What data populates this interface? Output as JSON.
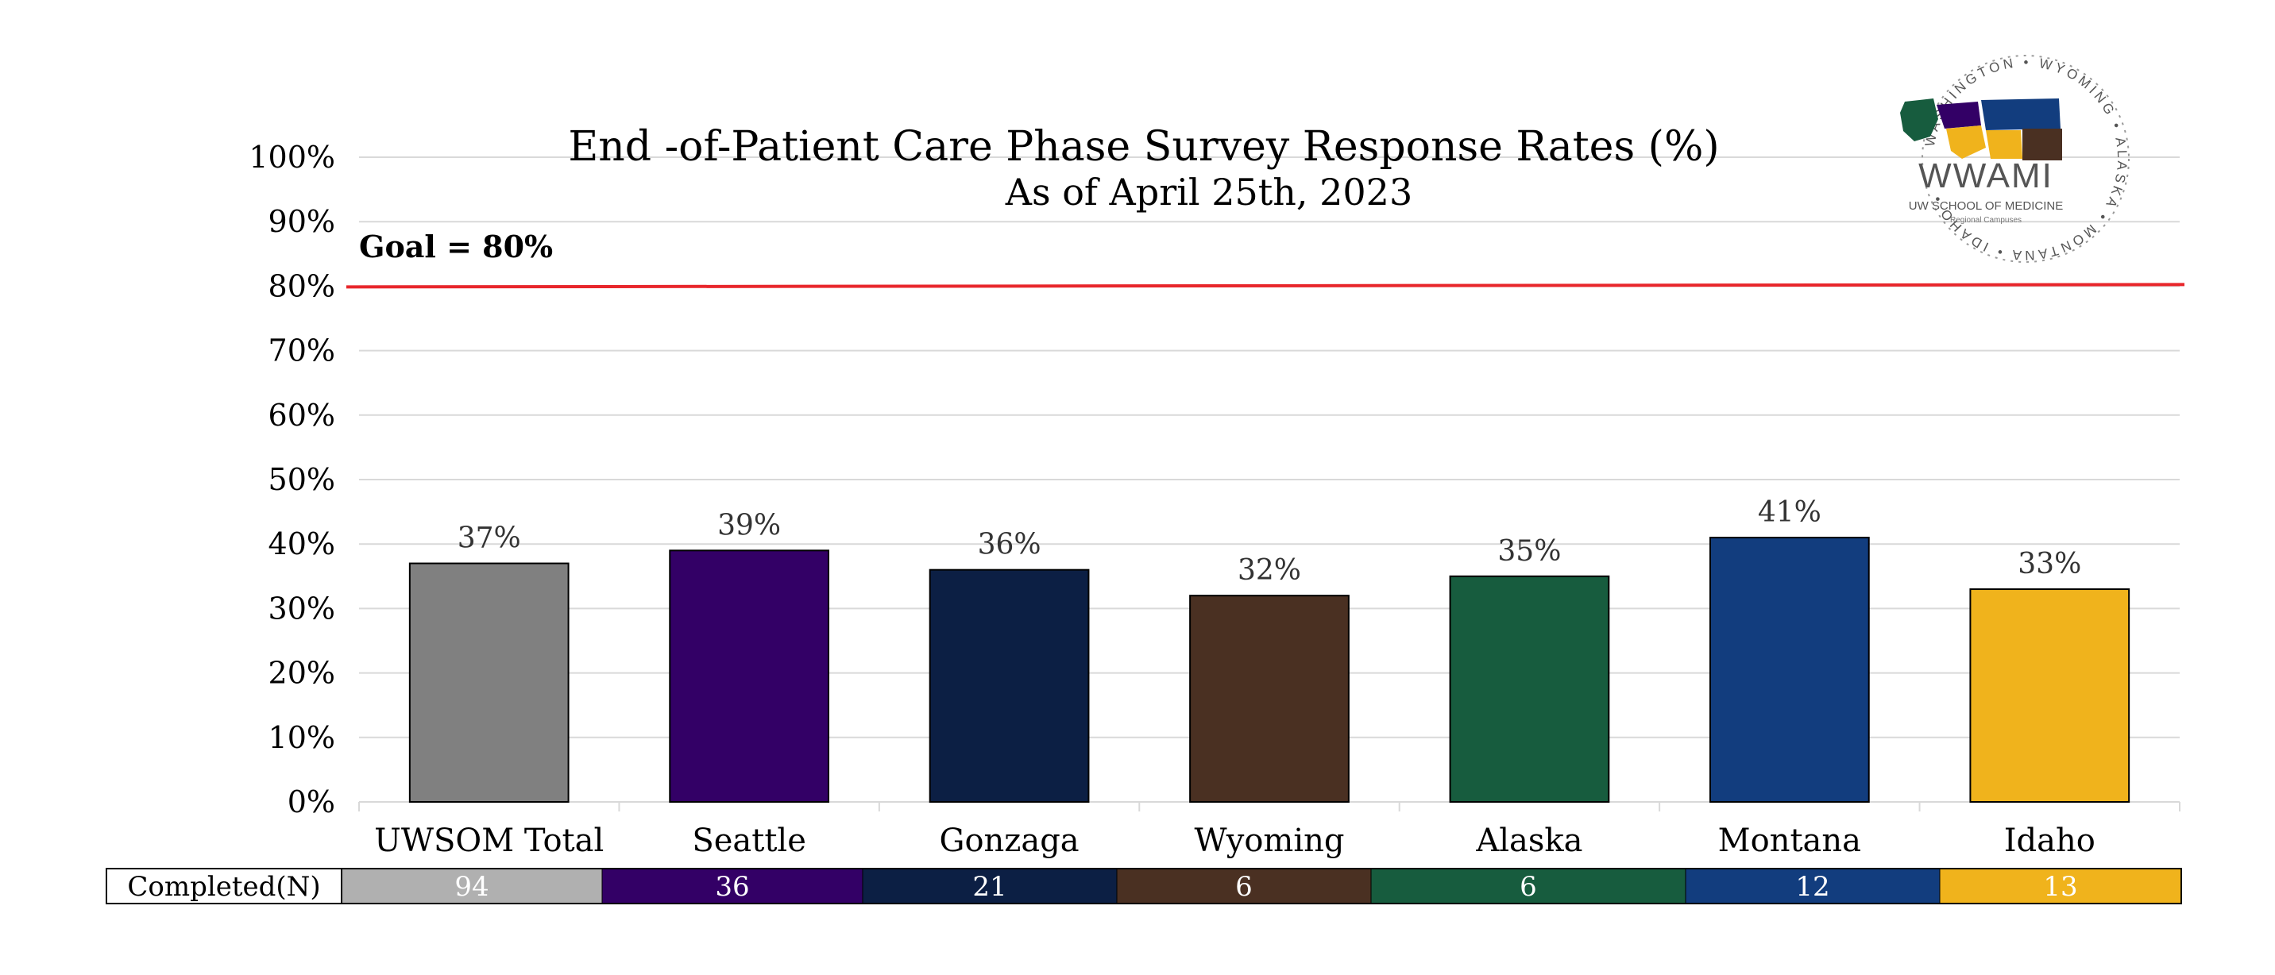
{
  "chart_data": {
    "type": "bar",
    "title": "End -of-Patient Care Phase Survey Response Rates (%)",
    "subtitle": "As of April 25th, 2023",
    "categories": [
      "UWSOM Total",
      "Seattle",
      "Gonzaga",
      "Wyoming",
      "Alaska",
      "Montana",
      "Idaho"
    ],
    "values": [
      37,
      39,
      36,
      32,
      35,
      41,
      33
    ],
    "value_labels": [
      "37%",
      "39%",
      "36%",
      "32%",
      "35%",
      "41%",
      "33%"
    ],
    "colors": [
      "#808080",
      "#330066",
      "#0c1f44",
      "#4a3022",
      "#175c3e",
      "#123d7e",
      "#f0b31c"
    ],
    "ylim": [
      0,
      100
    ],
    "yticks": [
      0,
      10,
      20,
      30,
      40,
      50,
      60,
      70,
      80,
      90,
      100
    ],
    "ytick_labels": [
      "0%",
      "10%",
      "20%",
      "30%",
      "40%",
      "50%",
      "60%",
      "70%",
      "80%",
      "90%",
      "100%"
    ],
    "grid": true,
    "goal": {
      "value": 80,
      "label": "Goal = 80%",
      "color": "#e8262b"
    },
    "table": {
      "row_label": "Completed(N)",
      "values": [
        "94",
        "36",
        "21",
        "6",
        "6",
        "12",
        "13"
      ],
      "colors": [
        "#b0b0b0",
        "#330066",
        "#0c1f44",
        "#4a3022",
        "#175c3e",
        "#123d7e",
        "#f0b31c"
      ]
    }
  },
  "logo": {
    "name": "WWAMI",
    "subtitle": "UW SCHOOL OF MEDICINE",
    "tagline": "Regional Campuses",
    "ring_text": "WASHINGTON • WYOMING • ALASKA • MONTANA • IDAHO •"
  }
}
